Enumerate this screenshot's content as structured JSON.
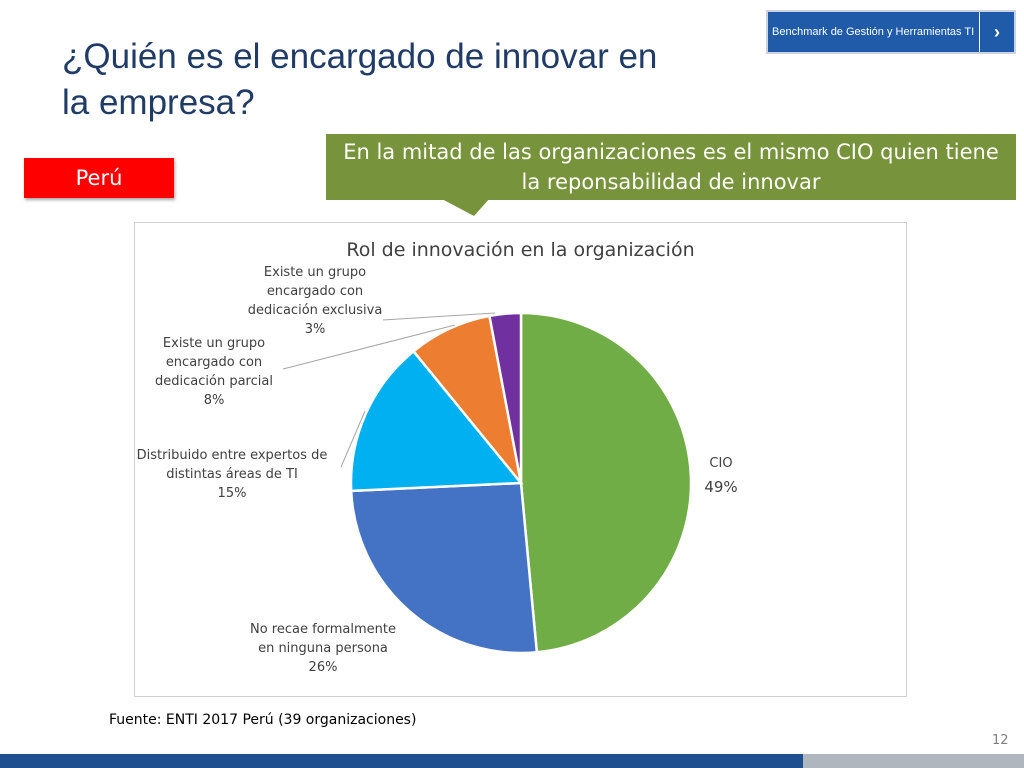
{
  "slide": {
    "title_line1": "¿Quién es el encargado de innovar en",
    "title_line2": "la empresa?",
    "benchmark_label": "Benchmark de Gestión y Herramientas TI",
    "benchmark_arrow": "›",
    "country": "Perú",
    "callout": "En la mitad de las organizaciones es el mismo CIO quien tiene la reponsabilidad de innovar",
    "source": "Fuente: ENTI 2017 Perú (39 organizaciones)",
    "page_number": "12"
  },
  "colors": {
    "title": "#1f3b66",
    "benchmark_bg": "#1f5ba8",
    "country_bg": "#ff0000",
    "callout_bg": "#77933c",
    "footer_blue": "#1f4f8f",
    "footer_gray": "#b0b6bd"
  },
  "chart_data": {
    "type": "pie",
    "title": "Rol de innovación en la organización",
    "slices": [
      {
        "label": [
          "CIO"
        ],
        "value_label": "49%",
        "value": 49,
        "color": "#70ad47"
      },
      {
        "label": [
          "No recae formalmente",
          "en ninguna persona"
        ],
        "value_label": "26%",
        "value": 26,
        "color": "#4472c4"
      },
      {
        "label": [
          "Distribuido entre expertos de",
          "distintas áreas de TI"
        ],
        "value_label": "15%",
        "value": 15,
        "color": "#00b0f0"
      },
      {
        "label": [
          "Existe un grupo",
          "encargado con",
          "dedicación parcial"
        ],
        "value_label": "8%",
        "value": 8,
        "color": "#ed7d31"
      },
      {
        "label": [
          "Existe un grupo",
          "encargado con",
          "dedicación exclusiva"
        ],
        "value_label": "3%",
        "value": 3,
        "color": "#7030a0"
      }
    ],
    "start": "12 o'clock",
    "direction": "clockwise",
    "legend": "none"
  }
}
